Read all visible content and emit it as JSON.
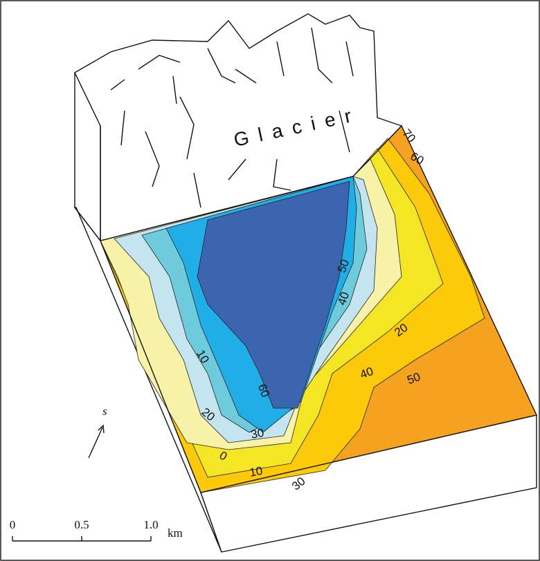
{
  "glacier_label": "Glacier",
  "contour_labels": [
    "70",
    "60",
    "50",
    "40",
    "20",
    "40",
    "50",
    "10",
    "60",
    "20",
    "30",
    "0",
    "10",
    "30"
  ],
  "direction_label": "s",
  "scale_bar": {
    "ticks": [
      "0",
      "0.5",
      "1.0"
    ],
    "unit": "km"
  }
}
